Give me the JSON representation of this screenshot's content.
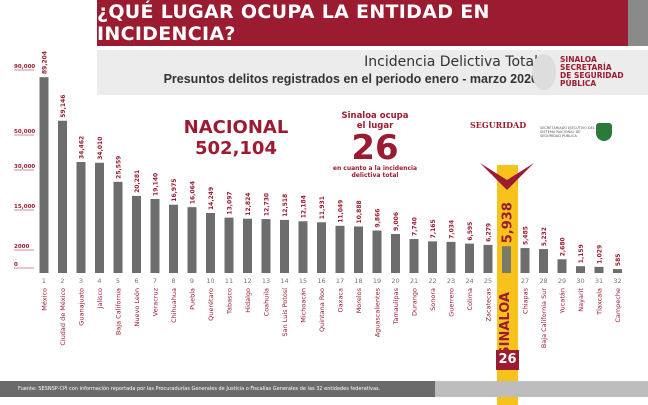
{
  "header": {
    "title": "¿QUÉ LUGAR OCUPA LA ENTIDAD EN INCIDENCIA?",
    "subtitle": "Incidencia Delictiva Total",
    "period": "Presuntos delitos registrados en el periodo enero - marzo 2020"
  },
  "logos": {
    "sinaloa_ssp": "SINALOA SECRETARÍA DE SEGURIDAD PÚBLICA",
    "seguridad": "SEGURIDAD",
    "sesnsp": "SECRETARIADO EJECUTIVO DEL SISTEMA NACIONAL DE SEGURIDAD PÚBLICA"
  },
  "nacional": {
    "label": "NACIONAL",
    "value": "502,104"
  },
  "sinaloa_box": {
    "line1": "Sinaloa ocupa",
    "line2": "el lugar",
    "rank": "26",
    "line3": "en cuanto a la incidencia",
    "line4": "delictiva total",
    "rank_badge": "26"
  },
  "footer": {
    "source": "Fuente: SESNSP-CPI con información reportada por las Procuradurías Generales de Justicia o Fiscalías Generales de las 32 entidades federativas."
  },
  "colors": {
    "accent": "#9b1b30",
    "bar": "#6d6d6d",
    "highlight": "#f6c21b"
  },
  "chart_data": {
    "type": "bar",
    "highlight": "Sinaloa",
    "yticks": [
      0,
      2000,
      15000,
      30000,
      50000,
      90000
    ],
    "ytick_labels": [
      "0",
      "2000",
      "15,000",
      "30,000",
      "50,000",
      "90,000"
    ],
    "ranks": [
      "1",
      "2",
      "3",
      "4",
      "5",
      "6",
      "7",
      "8",
      "9",
      "10",
      "11",
      "12",
      "13",
      "14",
      "15",
      "16",
      "17",
      "18",
      "19",
      "20",
      "21",
      "22",
      "23",
      "24",
      "25",
      "26",
      "27",
      "28",
      "29",
      "30",
      "31",
      "32"
    ],
    "categories": [
      "México",
      "Ciudad de México",
      "Guanajuato",
      "Jalisco",
      "Baja California",
      "Nuevo León",
      "Veracruz",
      "Chihuahua",
      "Puebla",
      "Querétaro",
      "Tabasco",
      "Hidalgo",
      "Coahuila",
      "San Luis Potosí",
      "Michoacán",
      "Quintana Roo",
      "Oaxaca",
      "Morelos",
      "Aguascalientes",
      "Tamaulipas",
      "Durango",
      "Sonora",
      "Guerrero",
      "Colima",
      "Zacatecas",
      "SINALOA",
      "Chiapas",
      "Baja California Sur",
      "Yucatán",
      "Nayarit",
      "Tlaxcala",
      "Campeche"
    ],
    "values": [
      89204,
      59146,
      34462,
      34010,
      25559,
      20281,
      19140,
      16975,
      16064,
      14249,
      13097,
      12824,
      12730,
      12518,
      12184,
      11931,
      11049,
      10888,
      9866,
      9006,
      7740,
      7165,
      7034,
      6595,
      6279,
      5938,
      5485,
      5232,
      2680,
      1159,
      1029,
      585
    ],
    "value_labels": [
      "89,204",
      "59,146",
      "34,462",
      "34,010",
      "25,559",
      "20,281",
      "19,140",
      "16,975",
      "16,064",
      "14,249",
      "13,097",
      "12,824",
      "12,730",
      "12,518",
      "12,184",
      "11,931",
      "11,049",
      "10,888",
      "9,866",
      "9,006",
      "7,740",
      "7,165",
      "7,034",
      "6,595",
      "6,279",
      "5,938",
      "5,485",
      "5,232",
      "2,680",
      "1,159",
      "1,029",
      "585"
    ]
  }
}
